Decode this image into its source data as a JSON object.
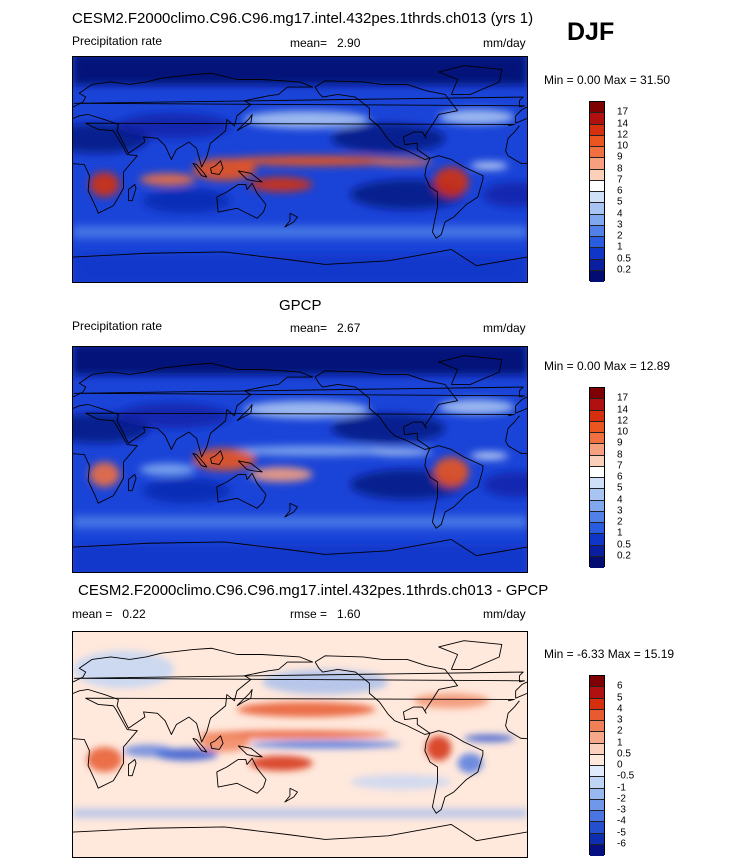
{
  "season": "DJF",
  "panels": [
    {
      "title": "CESM2.F2000climo.C96.C96.mg17.intel.432pes.1thrds.ch013 (yrs 1)",
      "variable": "Precipitation rate",
      "stat1_label": "mean=",
      "stat1_value": "2.90",
      "units": "mm/day",
      "range_text": "Min =   0.00 Max =  31.50",
      "colorbar_labels": [
        "17",
        "14",
        "12",
        "10",
        "9",
        "8",
        "7",
        "6",
        "5",
        "4",
        "3",
        "2",
        "1",
        "0.5",
        "0.2"
      ],
      "colors": [
        "#7f0000",
        "#b01010",
        "#d43010",
        "#ea5520",
        "#f07040",
        "#f6a080",
        "#fbd0b8",
        "#ffffff",
        "#d0e0f8",
        "#a8c4f2",
        "#80a8ee",
        "#5080e8",
        "#2a5ce0",
        "#1036c8",
        "#0a1ea0",
        "#030c70"
      ]
    },
    {
      "title": "GPCP",
      "variable": "Precipitation rate",
      "stat1_label": "mean=",
      "stat1_value": "2.67",
      "units": "mm/day",
      "range_text": "Min =   0.00 Max =  12.89",
      "colorbar_labels": [
        "17",
        "14",
        "12",
        "10",
        "9",
        "8",
        "7",
        "6",
        "5",
        "4",
        "3",
        "2",
        "1",
        "0.5",
        "0.2"
      ],
      "colors": [
        "#7f0000",
        "#b01010",
        "#d43010",
        "#ea5520",
        "#f07040",
        "#f6a080",
        "#fbd0b8",
        "#ffffff",
        "#d0e0f8",
        "#a8c4f2",
        "#80a8ee",
        "#5080e8",
        "#2a5ce0",
        "#1036c8",
        "#0a1ea0",
        "#030c70"
      ]
    },
    {
      "title": "CESM2.F2000climo.C96.C96.mg17.intel.432pes.1thrds.ch013 - GPCP",
      "stat1_label": "mean =",
      "stat1_value": "0.22",
      "stat2_label": "rmse =",
      "stat2_value": "1.60",
      "units": "mm/day",
      "range_text": "Min =  -6.33 Max =  15.19",
      "colorbar_labels": [
        "6",
        "5",
        "4",
        "3",
        "2",
        "1",
        "0.5",
        "0",
        "-0.5",
        "-1",
        "-2",
        "-3",
        "-4",
        "-5",
        "-6"
      ],
      "colors": [
        "#7f0000",
        "#b01010",
        "#d43010",
        "#e85a30",
        "#f08058",
        "#f6a888",
        "#fbd0bc",
        "#ffe8dc",
        "#e0ecfc",
        "#c0d4f6",
        "#98b8f0",
        "#7098ea",
        "#4a74e0",
        "#2450d0",
        "#0e2eb0",
        "#050f80"
      ]
    }
  ]
}
